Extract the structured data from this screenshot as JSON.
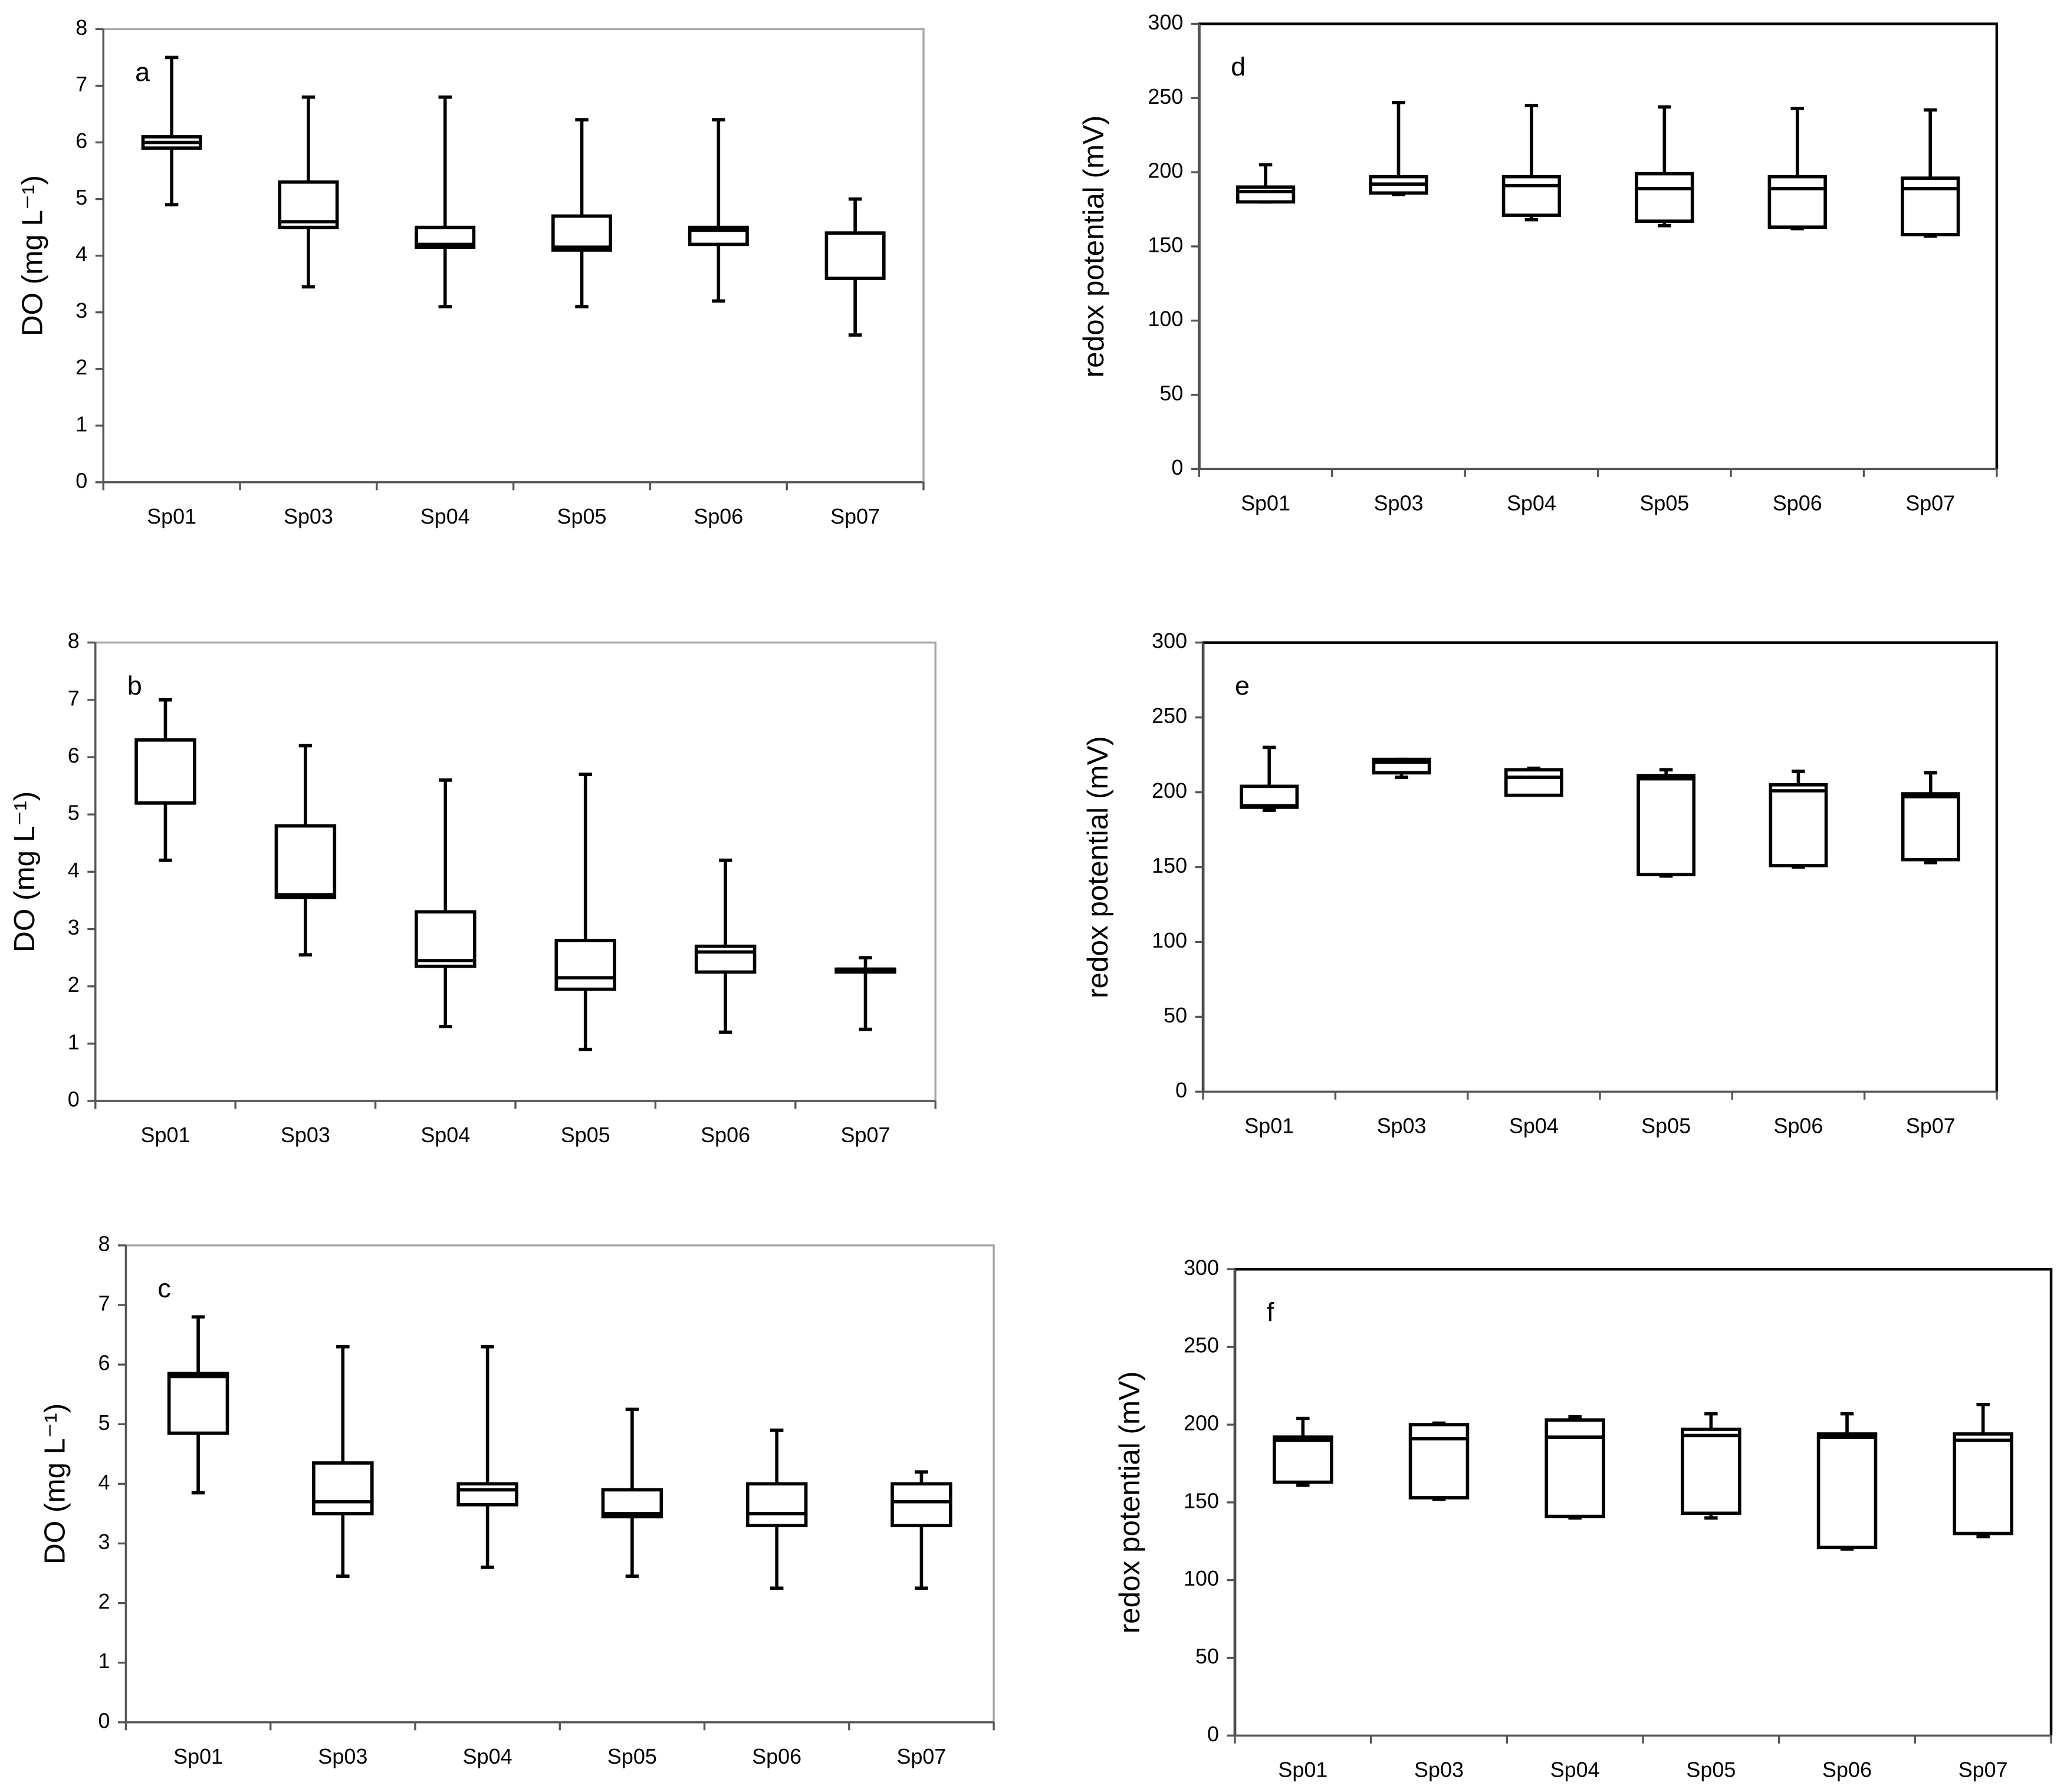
{
  "chart_data": [
    {
      "type": "box",
      "label": "a",
      "ylabel": "DO (mg L⁻¹)",
      "color": "#000000",
      "categories": [
        "Sp01",
        "Sp03",
        "Sp04",
        "Sp05",
        "Sp06",
        "Sp07"
      ],
      "min": [
        4.9,
        3.45,
        3.1,
        3.1,
        3.2,
        2.6
      ],
      "q1": [
        5.9,
        4.5,
        4.15,
        4.1,
        4.2,
        3.6
      ],
      "median": [
        6.0,
        4.6,
        4.2,
        4.15,
        4.45,
        4.4
      ],
      "q3": [
        6.1,
        5.3,
        4.5,
        4.7,
        4.5,
        4.4
      ],
      "max": [
        7.5,
        6.8,
        6.8,
        6.4,
        6.4,
        5.0
      ],
      "ylim": [
        0,
        8
      ],
      "yticks": [
        0,
        1,
        2,
        3,
        4,
        5,
        6,
        7,
        8
      ]
    },
    {
      "type": "box",
      "label": "b",
      "ylabel": "DO (mg L⁻¹)",
      "color": "#000000",
      "categories": [
        "Sp01",
        "Sp03",
        "Sp04",
        "Sp05",
        "Sp06",
        "Sp07"
      ],
      "min": [
        4.2,
        2.55,
        1.3,
        0.9,
        1.2,
        1.25
      ],
      "q1": [
        5.2,
        3.55,
        2.35,
        1.95,
        2.25,
        2.25
      ],
      "median": [
        5.2,
        3.6,
        2.45,
        2.15,
        2.6,
        2.3
      ],
      "q3": [
        6.3,
        4.8,
        3.3,
        2.8,
        2.7,
        2.3
      ],
      "max": [
        7.0,
        6.2,
        5.6,
        5.7,
        4.2,
        2.5
      ],
      "ylim": [
        0,
        8
      ],
      "yticks": [
        0,
        1,
        2,
        3,
        4,
        5,
        6,
        7,
        8
      ]
    },
    {
      "type": "box",
      "label": "c",
      "ylabel": "DO (mg L⁻¹)",
      "color": "#000000",
      "categories": [
        "Sp01",
        "Sp03",
        "Sp04",
        "Sp05",
        "Sp06",
        "Sp07"
      ],
      "min": [
        3.85,
        2.45,
        2.6,
        2.45,
        2.25,
        2.25
      ],
      "q1": [
        4.85,
        3.5,
        3.65,
        3.45,
        3.3,
        3.3
      ],
      "median": [
        5.8,
        3.7,
        3.9,
        3.5,
        3.5,
        3.7
      ],
      "q3": [
        5.85,
        4.35,
        4.0,
        3.9,
        4.0,
        4.0
      ],
      "max": [
        6.8,
        6.3,
        6.3,
        5.25,
        4.9,
        4.2
      ],
      "ylim": [
        0,
        8
      ],
      "yticks": [
        0,
        1,
        2,
        3,
        4,
        5,
        6,
        7,
        8
      ]
    },
    {
      "type": "box",
      "label": "d",
      "ylabel": "redox potential (mV)",
      "color": "#000000",
      "categories": [
        "Sp01",
        "Sp03",
        "Sp04",
        "Sp05",
        "Sp06",
        "Sp07"
      ],
      "min": [
        180,
        185,
        168,
        164,
        162,
        157
      ],
      "q1": [
        180,
        186,
        171,
        167,
        163,
        158
      ],
      "median": [
        187,
        192,
        191,
        189,
        189,
        189
      ],
      "q3": [
        190,
        197,
        197,
        199,
        197,
        196
      ],
      "max": [
        205,
        247,
        245,
        244,
        243,
        242
      ],
      "ylim": [
        0,
        300
      ],
      "yticks": [
        0,
        50,
        100,
        150,
        200,
        250,
        300
      ]
    },
    {
      "type": "box",
      "label": "e",
      "ylabel": "redox potential (mV)",
      "color": "#000000",
      "categories": [
        "Sp01",
        "Sp03",
        "Sp04",
        "Sp05",
        "Sp06",
        "Sp07"
      ],
      "min": [
        188,
        210,
        198,
        144,
        150,
        153
      ],
      "q1": [
        190,
        213,
        198,
        145,
        151,
        155
      ],
      "median": [
        191,
        220,
        210,
        209,
        201,
        197
      ],
      "q3": [
        204,
        222,
        215,
        211,
        205,
        199
      ],
      "max": [
        230,
        222,
        216,
        215,
        214,
        213
      ],
      "ylim": [
        0,
        300
      ],
      "yticks": [
        0,
        50,
        100,
        150,
        200,
        250,
        300
      ]
    },
    {
      "type": "box",
      "label": "f",
      "ylabel": "redox potential (mV)",
      "color": "#000000",
      "categories": [
        "Sp01",
        "Sp03",
        "Sp04",
        "Sp05",
        "Sp06",
        "Sp07"
      ],
      "min": [
        161,
        152,
        140,
        140,
        120,
        128
      ],
      "q1": [
        163,
        153,
        141,
        143,
        121,
        130
      ],
      "median": [
        190,
        191,
        192,
        193,
        192,
        190
      ],
      "q3": [
        192,
        200,
        203,
        197,
        194,
        194
      ],
      "max": [
        204,
        201,
        205,
        207,
        207,
        213
      ],
      "ylim": [
        0,
        300
      ],
      "yticks": [
        0,
        50,
        100,
        150,
        200,
        250,
        300
      ]
    }
  ]
}
